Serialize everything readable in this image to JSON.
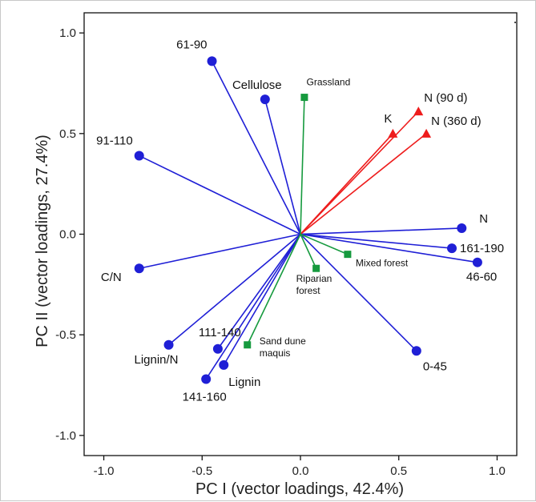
{
  "chart_data": {
    "type": "scatter",
    "title": "",
    "xlabel": "PC I (vector loadings, 42.4%)",
    "ylabel": "PC II (vector loadings, 27.4%)",
    "xlim": [
      -1.1,
      1.1
    ],
    "ylim": [
      -1.1,
      1.1
    ],
    "x_ticks": [
      "-1.0",
      "-0.5",
      "0.0",
      "0.5",
      "1.0"
    ],
    "y_ticks": [
      "1.0",
      "0.5",
      "0.0",
      "-0.5",
      "-1.0"
    ],
    "grid": false,
    "colors": {
      "blue": "#1f1fd6",
      "red": "#ee1c1c",
      "green": "#169a3e"
    },
    "series": [
      {
        "group": "blue",
        "marker": "circle",
        "points": [
          {
            "label": "61-90",
            "x": -0.45,
            "y": 0.86
          },
          {
            "label": "Cellulose",
            "x": -0.18,
            "y": 0.67
          },
          {
            "label": "91-110",
            "x": -0.82,
            "y": 0.39
          },
          {
            "label": "N",
            "x": 0.82,
            "y": 0.03
          },
          {
            "label": "161-190",
            "x": 0.77,
            "y": -0.07
          },
          {
            "label": "46-60",
            "x": 0.9,
            "y": -0.14
          },
          {
            "label": "C/N",
            "x": -0.82,
            "y": -0.17
          },
          {
            "label": "Lignin/N",
            "x": -0.67,
            "y": -0.55
          },
          {
            "label": "111-140",
            "x": -0.42,
            "y": -0.57
          },
          {
            "label": "Lignin",
            "x": -0.39,
            "y": -0.65
          },
          {
            "label": "141-160",
            "x": -0.48,
            "y": -0.72
          },
          {
            "label": "0-45",
            "x": 0.59,
            "y": -0.58
          }
        ]
      },
      {
        "group": "red",
        "marker": "triangle",
        "points": [
          {
            "label": "N (90 d)",
            "x": 0.6,
            "y": 0.61
          },
          {
            "label": "K",
            "x": 0.47,
            "y": 0.5
          },
          {
            "label": "N (360 d)",
            "x": 0.64,
            "y": 0.5
          }
        ]
      },
      {
        "group": "green",
        "marker": "square",
        "points": [
          {
            "label": "Grassland",
            "x": 0.02,
            "y": 0.68
          },
          {
            "label": "Mixed forest",
            "x": 0.24,
            "y": -0.1
          },
          {
            "label": "Riparian forest",
            "x": 0.08,
            "y": -0.17
          },
          {
            "label": "Sand dune maquis",
            "x": -0.27,
            "y": -0.55
          }
        ]
      }
    ]
  }
}
